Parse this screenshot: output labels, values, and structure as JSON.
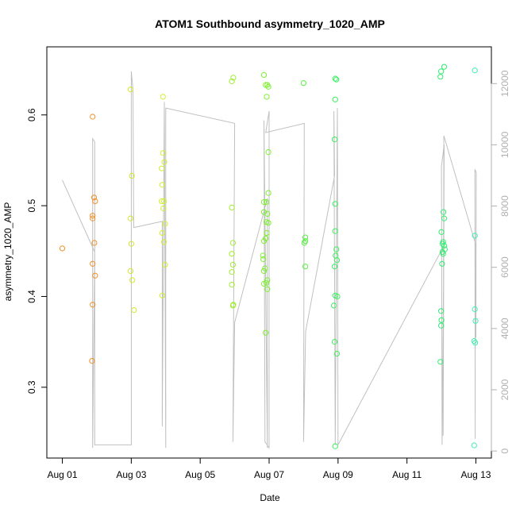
{
  "chart_data": {
    "type": "scatter",
    "title": "ATOM1 Southbound asymmetry_1020_AMP",
    "xlabel": "Date",
    "ylabel": "asymmetry_1020_AMP",
    "x_unit": "days since Aug 01",
    "x_ticks": [
      {
        "x": 0,
        "label": "Aug 01"
      },
      {
        "x": 2,
        "label": "Aug 03"
      },
      {
        "x": 4,
        "label": "Aug 05"
      },
      {
        "x": 6,
        "label": "Aug 07"
      },
      {
        "x": 8,
        "label": "Aug 09"
      },
      {
        "x": 10,
        "label": "Aug 11"
      },
      {
        "x": 12,
        "label": "Aug 13"
      }
    ],
    "xlim": [
      -0.45,
      12.45
    ],
    "ylim": [
      0.222,
      0.675
    ],
    "y_ticks": [
      0.3,
      0.4,
      0.5,
      0.6
    ],
    "y2_ticks": [
      0,
      2000,
      4000,
      6000,
      8000,
      10000,
      12000
    ],
    "y2lim": [
      -230,
      13200
    ],
    "grid": false,
    "colors": {
      "day1": "#f0902a",
      "day2": "#d2e62a",
      "day3": "#d0f030",
      "day4": "#a0ee30",
      "day5": "#7ef030",
      "day6": "#55f040",
      "day7": "#3cf060",
      "day8": "#30ee70",
      "day9": "#40f0b0",
      "day10": "#30ecc8",
      "secondary": "#c0c0c0"
    },
    "series": [
      {
        "color_key": "day1",
        "points": [
          [
            0.0,
            0.453
          ],
          [
            0.88,
            0.598
          ],
          [
            0.88,
            0.489
          ],
          [
            0.88,
            0.486
          ],
          [
            0.88,
            0.436
          ],
          [
            0.88,
            0.391
          ],
          [
            0.86,
            0.329
          ],
          [
            0.92,
            0.509
          ],
          [
            0.95,
            0.505
          ],
          [
            0.93,
            0.459
          ],
          [
            0.95,
            0.423
          ]
        ]
      },
      {
        "color_key": "day2",
        "points": [
          [
            1.98,
            0.628
          ],
          [
            2.02,
            0.533
          ],
          [
            1.98,
            0.486
          ],
          [
            2.0,
            0.458
          ],
          [
            1.98,
            0.428
          ],
          [
            2.03,
            0.418
          ],
          [
            2.08,
            0.385
          ]
        ]
      },
      {
        "color_key": "day3",
        "points": [
          [
            2.92,
            0.62
          ],
          [
            2.92,
            0.558
          ],
          [
            2.96,
            0.548
          ],
          [
            2.88,
            0.541
          ],
          [
            2.9,
            0.523
          ],
          [
            2.88,
            0.505
          ],
          [
            2.95,
            0.505
          ],
          [
            2.98,
            0.48
          ],
          [
            2.9,
            0.47
          ],
          [
            2.95,
            0.46
          ],
          [
            2.98,
            0.435
          ],
          [
            2.9,
            0.401
          ],
          [
            2.93,
            0.497
          ]
        ]
      },
      {
        "color_key": "day4",
        "points": [
          [
            4.92,
            0.637
          ],
          [
            4.96,
            0.641
          ],
          [
            4.92,
            0.498
          ],
          [
            4.95,
            0.459
          ],
          [
            4.92,
            0.447
          ],
          [
            4.95,
            0.435
          ],
          [
            4.92,
            0.427
          ],
          [
            4.92,
            0.413
          ],
          [
            4.96,
            0.391
          ],
          [
            4.95,
            0.39
          ]
        ]
      },
      {
        "color_key": "day5",
        "points": [
          [
            5.85,
            0.644
          ],
          [
            5.9,
            0.633
          ],
          [
            5.95,
            0.633
          ],
          [
            5.98,
            0.631
          ],
          [
            5.93,
            0.62
          ],
          [
            5.98,
            0.559
          ],
          [
            5.98,
            0.514
          ],
          [
            5.85,
            0.504
          ],
          [
            5.92,
            0.504
          ],
          [
            5.85,
            0.493
          ],
          [
            5.95,
            0.491
          ],
          [
            5.92,
            0.482
          ],
          [
            5.98,
            0.481
          ],
          [
            5.93,
            0.47
          ],
          [
            5.9,
            0.464
          ],
          [
            5.85,
            0.461
          ],
          [
            5.82,
            0.445
          ],
          [
            5.83,
            0.441
          ],
          [
            5.88,
            0.431
          ],
          [
            5.85,
            0.428
          ],
          [
            5.95,
            0.418
          ],
          [
            5.92,
            0.415
          ],
          [
            5.85,
            0.414
          ],
          [
            5.95,
            0.408
          ],
          [
            5.9,
            0.36
          ]
        ]
      },
      {
        "color_key": "day6",
        "points": [
          [
            7.0,
            0.635
          ],
          [
            7.05,
            0.465
          ],
          [
            7.05,
            0.461
          ],
          [
            7.02,
            0.459
          ],
          [
            7.05,
            0.433
          ]
        ]
      },
      {
        "color_key": "day7",
        "points": [
          [
            7.92,
            0.64
          ],
          [
            7.95,
            0.639
          ],
          [
            7.92,
            0.617
          ],
          [
            7.9,
            0.573
          ],
          [
            7.92,
            0.502
          ],
          [
            7.92,
            0.472
          ],
          [
            7.95,
            0.452
          ],
          [
            7.93,
            0.445
          ],
          [
            7.97,
            0.44
          ],
          [
            7.9,
            0.433
          ],
          [
            7.92,
            0.401
          ],
          [
            7.98,
            0.4
          ],
          [
            7.88,
            0.39
          ],
          [
            7.9,
            0.35
          ],
          [
            7.97,
            0.337
          ],
          [
            7.92,
            0.235
          ]
        ]
      },
      {
        "color_key": "day8",
        "points": [
          [
            10.97,
            0.642
          ],
          [
            10.99,
            0.648
          ],
          [
            11.08,
            0.653
          ],
          [
            11.06,
            0.493
          ],
          [
            11.08,
            0.486
          ],
          [
            11.0,
            0.471
          ],
          [
            11.05,
            0.46
          ],
          [
            11.03,
            0.458
          ],
          [
            11.08,
            0.456
          ],
          [
            11.1,
            0.452
          ],
          [
            11.03,
            0.449
          ],
          [
            11.05,
            0.447
          ],
          [
            11.02,
            0.436
          ],
          [
            10.99,
            0.384
          ],
          [
            11.0,
            0.374
          ],
          [
            10.99,
            0.368
          ],
          [
            10.97,
            0.328
          ]
        ]
      },
      {
        "color_key": "day9",
        "points": [
          [
            11.97,
            0.649
          ],
          [
            11.97,
            0.467
          ],
          [
            11.97,
            0.386
          ],
          [
            11.99,
            0.373
          ],
          [
            11.95,
            0.351
          ],
          [
            11.98,
            0.349
          ],
          [
            11.95,
            0.236
          ]
        ]
      }
    ],
    "secondary_series": {
      "axis": "right",
      "color_key": "secondary",
      "points": [
        [
          0.0,
          8850
        ],
        [
          0.94,
          6500
        ],
        [
          0.88,
          100
        ],
        [
          0.88,
          10200
        ],
        [
          0.94,
          10100
        ],
        [
          0.94,
          200
        ],
        [
          2.0,
          200
        ],
        [
          2.0,
          12400
        ],
        [
          2.05,
          11800
        ],
        [
          2.07,
          7300
        ],
        [
          2.9,
          7500
        ],
        [
          2.9,
          800
        ],
        [
          2.96,
          11400
        ],
        [
          3.0,
          100
        ],
        [
          3.0,
          11200
        ],
        [
          5.0,
          10700
        ],
        [
          4.95,
          300
        ],
        [
          5.0,
          4200
        ],
        [
          5.95,
          8250
        ],
        [
          5.95,
          100
        ],
        [
          5.85,
          10800
        ],
        [
          5.88,
          300
        ],
        [
          6.0,
          100
        ],
        [
          6.0,
          11100
        ],
        [
          5.9,
          10400
        ],
        [
          7.02,
          10700
        ],
        [
          7.0,
          300
        ],
        [
          7.06,
          3900
        ],
        [
          7.9,
          9000
        ],
        [
          7.88,
          11100
        ],
        [
          7.92,
          200
        ],
        [
          7.98,
          11200
        ],
        [
          8.0,
          200
        ],
        [
          11.07,
          6700
        ],
        [
          11.02,
          200
        ],
        [
          11.0,
          9300
        ],
        [
          11.08,
          10000
        ],
        [
          11.05,
          500
        ],
        [
          11.07,
          10300
        ],
        [
          11.98,
          6800
        ],
        [
          11.98,
          400
        ],
        [
          11.97,
          9200
        ],
        [
          12.01,
          9100
        ],
        [
          12.0,
          3700
        ]
      ]
    }
  }
}
